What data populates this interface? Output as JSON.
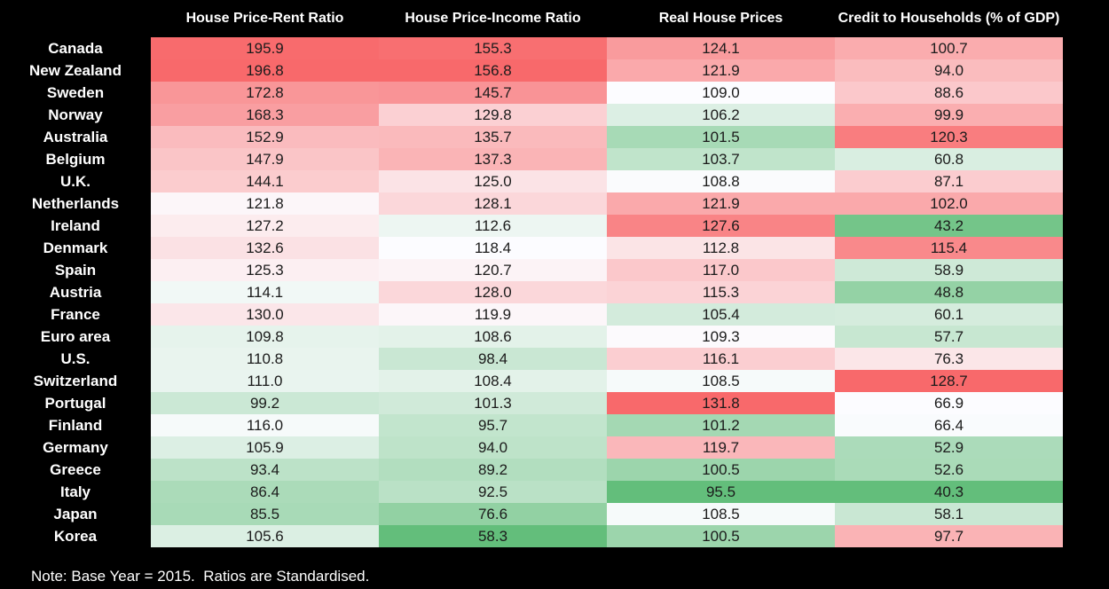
{
  "chart_data": {
    "type": "heatmap",
    "columns": [
      "House Price-Rent Ratio",
      "House Price-Income Ratio",
      "Real House Prices",
      "Credit to Households (% of GDP)"
    ],
    "rows": [
      {
        "country": "Canada",
        "values": [
          195.9,
          155.3,
          124.1,
          100.7
        ]
      },
      {
        "country": "New Zealand",
        "values": [
          196.8,
          156.8,
          121.9,
          94.0
        ]
      },
      {
        "country": "Sweden",
        "values": [
          172.8,
          145.7,
          109.0,
          88.6
        ]
      },
      {
        "country": "Norway",
        "values": [
          168.3,
          129.8,
          106.2,
          99.9
        ]
      },
      {
        "country": "Australia",
        "values": [
          152.9,
          135.7,
          101.5,
          120.3
        ]
      },
      {
        "country": "Belgium",
        "values": [
          147.9,
          137.3,
          103.7,
          60.8
        ]
      },
      {
        "country": "U.K.",
        "values": [
          144.1,
          125.0,
          108.8,
          87.1
        ]
      },
      {
        "country": "Netherlands",
        "values": [
          121.8,
          128.1,
          121.9,
          102.0
        ]
      },
      {
        "country": "Ireland",
        "values": [
          127.2,
          112.6,
          127.6,
          43.2
        ]
      },
      {
        "country": "Denmark",
        "values": [
          132.6,
          118.4,
          112.8,
          115.4
        ]
      },
      {
        "country": "Spain",
        "values": [
          125.3,
          120.7,
          117.0,
          58.9
        ]
      },
      {
        "country": "Austria",
        "values": [
          114.1,
          128.0,
          115.3,
          48.8
        ]
      },
      {
        "country": "France",
        "values": [
          130.0,
          119.9,
          105.4,
          60.1
        ]
      },
      {
        "country": "Euro area",
        "values": [
          109.8,
          108.6,
          109.3,
          57.7
        ]
      },
      {
        "country": "U.S.",
        "values": [
          110.8,
          98.4,
          116.1,
          76.3
        ]
      },
      {
        "country": "Switzerland",
        "values": [
          111.0,
          108.4,
          108.5,
          128.7
        ]
      },
      {
        "country": "Portugal",
        "values": [
          99.2,
          101.3,
          131.8,
          66.9
        ]
      },
      {
        "country": "Finland",
        "values": [
          116.0,
          95.7,
          101.2,
          66.4
        ]
      },
      {
        "country": "Germany",
        "values": [
          105.9,
          94.0,
          119.7,
          52.9
        ]
      },
      {
        "country": "Greece",
        "values": [
          93.4,
          89.2,
          100.5,
          52.6
        ]
      },
      {
        "country": "Italy",
        "values": [
          86.4,
          92.5,
          95.5,
          40.3
        ]
      },
      {
        "country": "Japan",
        "values": [
          85.5,
          76.6,
          108.5,
          58.1
        ]
      },
      {
        "country": "Korea",
        "values": [
          105.6,
          58.3,
          100.5,
          97.7
        ]
      }
    ],
    "color_scale": {
      "green": "#63BE7B",
      "white": "#FCFCFF",
      "red": "#F8696B",
      "per_column_anchors": [
        {
          "green_at": 58.3,
          "white_at": 118.4,
          "red_at": 196.8
        },
        {
          "green_at": 58.3,
          "white_at": 118.4,
          "red_at": 156.8
        },
        {
          "green_at": 95.5,
          "white_at": 109.0,
          "red_at": 131.8
        },
        {
          "green_at": 40.3,
          "white_at": 66.9,
          "red_at": 128.7
        }
      ]
    },
    "background": "#000000",
    "note": "Note: Base Year = 2015.  Ratios are Standardised."
  }
}
